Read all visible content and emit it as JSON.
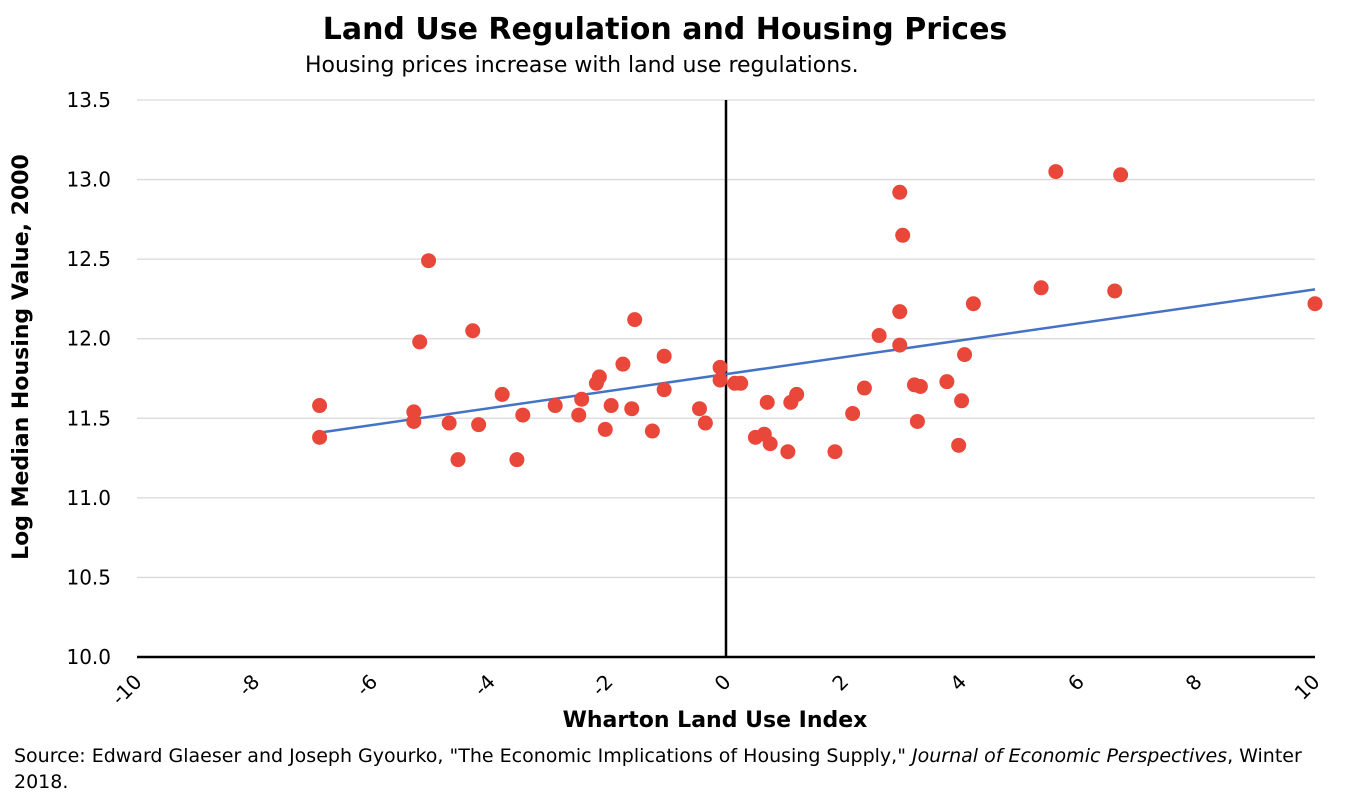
{
  "chart_data": {
    "type": "scatter",
    "title": "Land Use Regulation and Housing Prices",
    "subtitle": "Housing prices increase with land use regulations.",
    "xlabel": "Wharton Land Use Index",
    "ylabel": "Log Median Housing Value, 2000",
    "xlim": [
      -10,
      10
    ],
    "ylim": [
      10.0,
      13.5
    ],
    "x_ticks": [
      "-10",
      "-8",
      "-6",
      "-4",
      "-2",
      "0",
      "2",
      "4",
      "6",
      "8",
      "10"
    ],
    "y_ticks": [
      "10.0",
      "10.5",
      "11.0",
      "11.5",
      "12.0",
      "12.5",
      "13.0",
      "13.5"
    ],
    "grid": "horizontal",
    "point_color": "#e8473a",
    "trendline_color": "#4472c4",
    "trendline": {
      "x": [
        -6.9,
        10.0
      ],
      "y": [
        11.41,
        12.31
      ]
    },
    "points": [
      {
        "x": -6.9,
        "y": 11.58
      },
      {
        "x": -6.9,
        "y": 11.38
      },
      {
        "x": -5.3,
        "y": 11.54
      },
      {
        "x": -5.3,
        "y": 11.48
      },
      {
        "x": -5.2,
        "y": 11.98
      },
      {
        "x": -5.05,
        "y": 12.49
      },
      {
        "x": -4.7,
        "y": 11.47
      },
      {
        "x": -4.55,
        "y": 11.24
      },
      {
        "x": -4.3,
        "y": 12.05
      },
      {
        "x": -4.2,
        "y": 11.46
      },
      {
        "x": -3.8,
        "y": 11.65
      },
      {
        "x": -3.55,
        "y": 11.24
      },
      {
        "x": -3.45,
        "y": 11.52
      },
      {
        "x": -2.9,
        "y": 11.58
      },
      {
        "x": -2.5,
        "y": 11.52
      },
      {
        "x": -2.45,
        "y": 11.62
      },
      {
        "x": -2.2,
        "y": 11.72
      },
      {
        "x": -2.15,
        "y": 11.76
      },
      {
        "x": -2.05,
        "y": 11.43
      },
      {
        "x": -1.95,
        "y": 11.58
      },
      {
        "x": -1.75,
        "y": 11.84
      },
      {
        "x": -1.6,
        "y": 11.56
      },
      {
        "x": -1.55,
        "y": 12.12
      },
      {
        "x": -1.25,
        "y": 11.42
      },
      {
        "x": -1.05,
        "y": 11.89
      },
      {
        "x": -1.05,
        "y": 11.68
      },
      {
        "x": -0.45,
        "y": 11.56
      },
      {
        "x": -0.35,
        "y": 11.47
      },
      {
        "x": -0.1,
        "y": 11.82
      },
      {
        "x": -0.1,
        "y": 11.74
      },
      {
        "x": 0.15,
        "y": 11.72
      },
      {
        "x": 0.25,
        "y": 11.72
      },
      {
        "x": 0.5,
        "y": 11.38
      },
      {
        "x": 0.65,
        "y": 11.4
      },
      {
        "x": 0.7,
        "y": 11.6
      },
      {
        "x": 0.75,
        "y": 11.34
      },
      {
        "x": 1.05,
        "y": 11.29
      },
      {
        "x": 1.1,
        "y": 11.6
      },
      {
        "x": 1.2,
        "y": 11.65
      },
      {
        "x": 1.85,
        "y": 11.29
      },
      {
        "x": 2.15,
        "y": 11.53
      },
      {
        "x": 2.35,
        "y": 11.69
      },
      {
        "x": 2.6,
        "y": 12.02
      },
      {
        "x": 2.95,
        "y": 12.92
      },
      {
        "x": 3.0,
        "y": 12.65
      },
      {
        "x": 2.95,
        "y": 12.17
      },
      {
        "x": 2.95,
        "y": 11.96
      },
      {
        "x": 3.2,
        "y": 11.71
      },
      {
        "x": 3.3,
        "y": 11.7
      },
      {
        "x": 3.25,
        "y": 11.48
      },
      {
        "x": 3.75,
        "y": 11.73
      },
      {
        "x": 3.95,
        "y": 11.33
      },
      {
        "x": 4.0,
        "y": 11.61
      },
      {
        "x": 4.05,
        "y": 11.9
      },
      {
        "x": 4.2,
        "y": 12.22
      },
      {
        "x": 5.35,
        "y": 12.32
      },
      {
        "x": 5.6,
        "y": 13.05
      },
      {
        "x": 6.6,
        "y": 12.3
      },
      {
        "x": 6.7,
        "y": 13.03
      },
      {
        "x": 10.0,
        "y": 12.22
      }
    ]
  },
  "source_note": {
    "prefix": "Source: Edward Glaeser and Joseph Gyourko, \"The Economic Implications of Housing Supply,\" ",
    "journal": "Journal of Economic Perspectives",
    "suffix": ", Winter 2018."
  }
}
